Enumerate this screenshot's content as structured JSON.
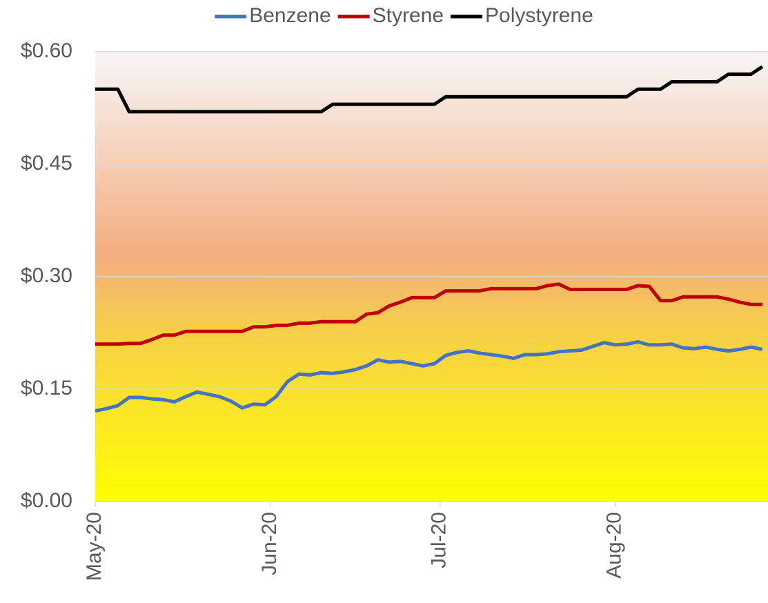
{
  "chart_data": {
    "type": "line",
    "x": [
      0,
      2,
      4,
      6,
      8,
      10,
      12,
      14,
      16,
      18,
      20,
      22,
      24,
      26,
      28,
      30,
      32,
      34,
      36,
      38,
      40,
      42,
      44,
      46,
      48,
      50,
      52,
      54,
      56,
      58,
      60,
      62,
      64,
      66,
      68,
      70,
      72,
      74,
      76,
      78,
      80,
      82,
      84,
      86,
      88,
      90,
      92,
      94,
      96,
      98,
      100,
      102,
      104,
      106,
      108,
      110,
      112,
      114,
      116,
      118
    ],
    "series": [
      {
        "name": "Benzene",
        "color": "#4472c4",
        "values": [
          0.121,
          0.124,
          0.128,
          0.139,
          0.139,
          0.137,
          0.136,
          0.133,
          0.14,
          0.146,
          0.143,
          0.14,
          0.134,
          0.125,
          0.13,
          0.129,
          0.14,
          0.16,
          0.17,
          0.169,
          0.172,
          0.171,
          0.173,
          0.176,
          0.181,
          0.189,
          0.186,
          0.187,
          0.184,
          0.181,
          0.184,
          0.195,
          0.199,
          0.201,
          0.198,
          0.196,
          0.194,
          0.191,
          0.196,
          0.196,
          0.197,
          0.2,
          0.201,
          0.202,
          0.207,
          0.212,
          0.209,
          0.21,
          0.213,
          0.209,
          0.209,
          0.21,
          0.205,
          0.204,
          0.206,
          0.203,
          0.201,
          0.203,
          0.206,
          0.203
        ]
      },
      {
        "name": "Styrene",
        "color": "#c00000",
        "values": [
          0.21,
          0.21,
          0.21,
          0.211,
          0.211,
          0.216,
          0.222,
          0.222,
          0.227,
          0.227,
          0.227,
          0.227,
          0.227,
          0.227,
          0.233,
          0.233,
          0.235,
          0.235,
          0.238,
          0.238,
          0.24,
          0.24,
          0.24,
          0.24,
          0.25,
          0.252,
          0.261,
          0.266,
          0.272,
          0.272,
          0.272,
          0.281,
          0.281,
          0.281,
          0.281,
          0.284,
          0.284,
          0.284,
          0.284,
          0.284,
          0.288,
          0.29,
          0.283,
          0.283,
          0.283,
          0.283,
          0.283,
          0.283,
          0.288,
          0.287,
          0.268,
          0.268,
          0.273,
          0.273,
          0.273,
          0.273,
          0.27,
          0.266,
          0.263,
          0.263
        ]
      },
      {
        "name": "Polystyrene",
        "color": "#000000",
        "values": [
          0.55,
          0.55,
          0.55,
          0.52,
          0.52,
          0.52,
          0.52,
          0.52,
          0.52,
          0.52,
          0.52,
          0.52,
          0.52,
          0.52,
          0.52,
          0.52,
          0.52,
          0.52,
          0.52,
          0.52,
          0.52,
          0.53,
          0.53,
          0.53,
          0.53,
          0.53,
          0.53,
          0.53,
          0.53,
          0.53,
          0.53,
          0.54,
          0.54,
          0.54,
          0.54,
          0.54,
          0.54,
          0.54,
          0.54,
          0.54,
          0.54,
          0.54,
          0.54,
          0.54,
          0.54,
          0.54,
          0.54,
          0.54,
          0.55,
          0.55,
          0.55,
          0.56,
          0.56,
          0.56,
          0.56,
          0.56,
          0.57,
          0.57,
          0.57,
          0.58
        ]
      }
    ],
    "xlim": [
      0,
      119
    ],
    "xticks": [
      {
        "value": 0,
        "label": "May-20"
      },
      {
        "value": 31,
        "label": "Jun-20"
      },
      {
        "value": 61,
        "label": "Jul-20"
      },
      {
        "value": 92,
        "label": "Aug-20"
      }
    ],
    "ylim": [
      0,
      0.6
    ],
    "yticks": [
      {
        "value": 0,
        "label": "$0.00"
      },
      {
        "value": 0.15,
        "label": "$0.15"
      },
      {
        "value": 0.3,
        "label": "$0.30"
      },
      {
        "value": 0.45,
        "label": "$0.45"
      },
      {
        "value": 0.6,
        "label": "$0.60"
      }
    ],
    "grid": true,
    "legend": "top"
  }
}
